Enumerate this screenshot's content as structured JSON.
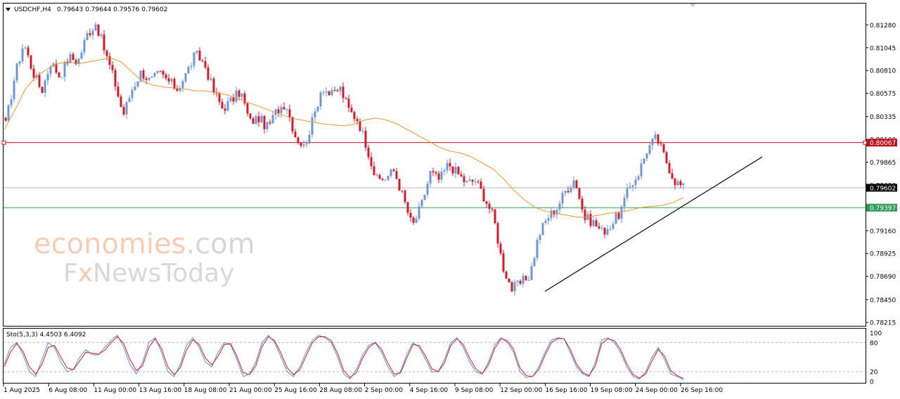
{
  "chart_data": [
    {
      "type": "candlestick",
      "symbol_label": "USDCHF,H4",
      "ohlc_label": "0.79643 0.79644 0.79576 0.79602",
      "ylim": [
        0.7818,
        0.815
      ],
      "y_ticks": [
        "0.81280",
        "0.81045",
        "0.80810",
        "0.80575",
        "0.80335",
        "0.80100",
        "0.79865",
        "0.79630",
        "0.79395",
        "0.79160",
        "0.78925",
        "0.78690",
        "0.78450",
        "0.78215"
      ],
      "x_ticks": [
        "1 Aug 2025",
        "6 Aug 08:00",
        "11 Aug 00:00",
        "13 Aug 16:00",
        "18 Aug 08:00",
        "21 Aug 00:00",
        "25 Aug 16:00",
        "28 Aug 08:00",
        "2 Sep 00:00",
        "4 Sep 16:00",
        "9 Sep 08:00",
        "12 Sep 00:00",
        "16 Sep 16:00",
        "19 Sep 08:00",
        "24 Sep 00:00",
        "26 Sep 16:00"
      ],
      "close_path": [
        0.8025,
        0.8075,
        0.811,
        0.808,
        0.806,
        0.809,
        0.8075,
        0.8095,
        0.809,
        0.8118,
        0.813,
        0.81,
        0.8072,
        0.8035,
        0.8062,
        0.808,
        0.807,
        0.8078,
        0.807,
        0.8062,
        0.8078,
        0.8098,
        0.8088,
        0.806,
        0.8042,
        0.805,
        0.806,
        0.8028,
        0.8032,
        0.8022,
        0.804,
        0.8048,
        0.8015,
        0.8002,
        0.803,
        0.8065,
        0.8055,
        0.8063,
        0.804,
        0.803,
        0.8002,
        0.7968,
        0.797,
        0.7978,
        0.795,
        0.792,
        0.7942,
        0.7976,
        0.7968,
        0.7985,
        0.7975,
        0.7965,
        0.7968,
        0.795,
        0.793,
        0.788,
        0.7856,
        0.7862,
        0.787,
        0.7912,
        0.793,
        0.794,
        0.7958,
        0.797,
        0.793,
        0.7925,
        0.7915,
        0.7922,
        0.7935,
        0.796,
        0.7975,
        0.8,
        0.8012,
        0.799,
        0.7968,
        0.796
      ],
      "ma_path": [
        0.802,
        0.804,
        0.8062,
        0.8075,
        0.8082,
        0.8088,
        0.809,
        0.8088,
        0.809,
        0.8092,
        0.8094,
        0.809,
        0.808,
        0.807,
        0.8066,
        0.8064,
        0.8063,
        0.8062,
        0.806,
        0.806,
        0.8058,
        0.8056,
        0.8052,
        0.8048,
        0.8044,
        0.804,
        0.8036,
        0.8032,
        0.803,
        0.8028,
        0.8026,
        0.8025,
        0.8024,
        0.8026,
        0.803,
        0.8032,
        0.803,
        0.8026,
        0.802,
        0.8014,
        0.8008,
        0.8002,
        0.7998,
        0.7996,
        0.7992,
        0.7986,
        0.798,
        0.797,
        0.7958,
        0.7948,
        0.794,
        0.7936,
        0.7934,
        0.7932,
        0.793,
        0.793,
        0.7932,
        0.7934,
        0.7935,
        0.7937,
        0.794,
        0.7941,
        0.7942,
        0.7945,
        0.795
      ],
      "lines": {
        "resistance": {
          "value": 0.80067,
          "label": "0.80067",
          "color": "#c0111f"
        },
        "current": {
          "value": 0.79602,
          "label": "0.79602",
          "color": "#b4b4b4"
        },
        "support": {
          "value": 0.79397,
          "label": "0.79397",
          "color": "#2e9a5b"
        }
      },
      "colors": {
        "up": "#6f96d4",
        "down": "#d01b28",
        "ma": "#e09a2f",
        "trendline": "#000000"
      },
      "watermark": {
        "line1a": "economies",
        "line1b": ".com",
        "line2a": "F",
        "line2b": "x",
        "line2c": "NewsToday"
      },
      "grid": false
    },
    {
      "type": "line",
      "label": "Sto(5,3,3) 4.4503 6.4092",
      "ylim": [
        0,
        100
      ],
      "y_ticks": [
        "100",
        "80",
        "20",
        "0"
      ],
      "levels": [
        80,
        20
      ],
      "series": [
        {
          "color": "#5b8fd8",
          "values": [
            35,
            70,
            80,
            55,
            20,
            10,
            45,
            80,
            70,
            40,
            20,
            25,
            50,
            65,
            55,
            55,
            70,
            85,
            95,
            70,
            35,
            15,
            40,
            80,
            90,
            60,
            20,
            10,
            35,
            75,
            90,
            70,
            40,
            30,
            60,
            80,
            75,
            45,
            10,
            15,
            40,
            80,
            95,
            80,
            50,
            20,
            10,
            30,
            60,
            85,
            95,
            90,
            80,
            50,
            15,
            5,
            25,
            55,
            75,
            80,
            60,
            30,
            10,
            20,
            55,
            80,
            70,
            45,
            20,
            20,
            45,
            80,
            90,
            70,
            40,
            20,
            15,
            40,
            75,
            90,
            80,
            60,
            20,
            8,
            10,
            30,
            60,
            85,
            90,
            88,
            60,
            30,
            15,
            10,
            40,
            85,
            90,
            80,
            60,
            30,
            10,
            5,
            20,
            50,
            70,
            45,
            15,
            10,
            4
          ]
        },
        {
          "color": "#d01b28",
          "values": [
            30,
            60,
            78,
            62,
            30,
            15,
            35,
            70,
            74,
            50,
            28,
            24,
            42,
            60,
            58,
            56,
            64,
            80,
            92,
            78,
            45,
            22,
            32,
            70,
            88,
            68,
            30,
            14,
            28,
            65,
            86,
            76,
            48,
            34,
            52,
            76,
            78,
            52,
            18,
            14,
            32,
            72,
            92,
            84,
            58,
            28,
            14,
            24,
            52,
            80,
            92,
            92,
            84,
            58,
            22,
            8,
            18,
            48,
            70,
            80,
            66,
            38,
            15,
            17,
            48,
            76,
            74,
            52,
            26,
            20,
            38,
            74,
            88,
            76,
            48,
            26,
            16,
            34,
            68,
            88,
            84,
            66,
            28,
            12,
            10,
            24,
            54,
            80,
            88,
            88,
            66,
            36,
            18,
            12,
            32,
            78,
            88,
            84,
            66,
            36,
            14,
            7,
            15,
            42,
            66,
            52,
            22,
            12,
            6
          ]
        }
      ],
      "grid": false
    }
  ]
}
